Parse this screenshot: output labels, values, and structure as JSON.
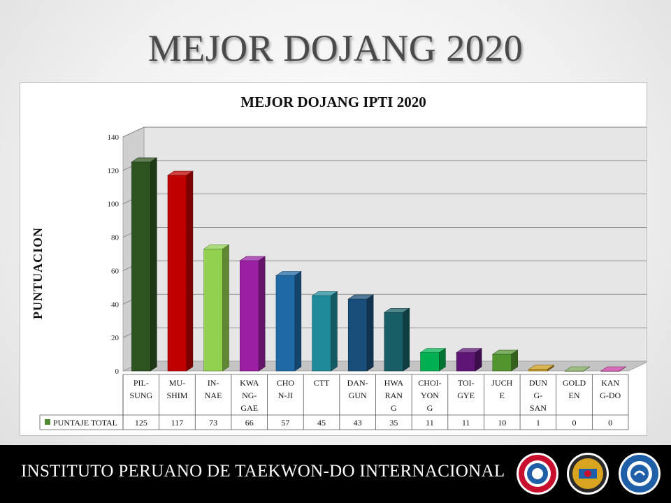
{
  "slide": {
    "title": "MEJOR DOJANG 2020"
  },
  "footer": {
    "text": "INSTITUTO PERUANO DE TAEKWON-DO INTERNACIONAL"
  },
  "logos": [
    {
      "name": "itf-chi-ji-logo",
      "color": "#c8102e"
    },
    {
      "name": "dojang-logo",
      "color": "#1f5fa8"
    },
    {
      "name": "international-taekwon-do-federation-logo",
      "color": "#1f5fa8"
    }
  ],
  "chart_data": {
    "type": "bar",
    "title": "MEJOR DOJANG IPTI 2020",
    "ylabel": "PUNTUACION",
    "xlabel": "",
    "ylim": [
      0,
      140
    ],
    "yticks": [
      0,
      20,
      40,
      60,
      80,
      100,
      120,
      140
    ],
    "grid": true,
    "style": "3d-column",
    "categories": [
      [
        "PIL-",
        "SUNG"
      ],
      [
        "MU-",
        "SHIM"
      ],
      [
        "IN-",
        "NAE"
      ],
      [
        "KWA",
        "NG-",
        "GAE"
      ],
      [
        "CHO",
        "N-JI"
      ],
      [
        "CTT"
      ],
      [
        "DAN-",
        "GUN"
      ],
      [
        "HWA",
        "RAN",
        "G"
      ],
      [
        "CHOI-",
        "YON",
        "G"
      ],
      [
        "TOI-",
        "GYE"
      ],
      [
        "JUCH",
        "E"
      ],
      [
        "DUN",
        "G-",
        "SAN"
      ],
      [
        "GOLD",
        "EN"
      ],
      [
        "KAN",
        "G-DO"
      ]
    ],
    "series": [
      {
        "name": "PUNTAJE TOTAL",
        "values": [
          125,
          117,
          73,
          66,
          57,
          45,
          43,
          35,
          11,
          11,
          10,
          1,
          0,
          0
        ]
      }
    ],
    "colors": [
      "#2e5420",
      "#c00000",
      "#92d050",
      "#9b1fa3",
      "#1f6aa5",
      "#1f8a9a",
      "#1a4e7a",
      "#175e66",
      "#00b050",
      "#5e1575",
      "#52952f",
      "#c99a1e",
      "#7caa5a",
      "#cc3ba0"
    ],
    "legend_color": "#4e8a32",
    "data_table": true
  }
}
